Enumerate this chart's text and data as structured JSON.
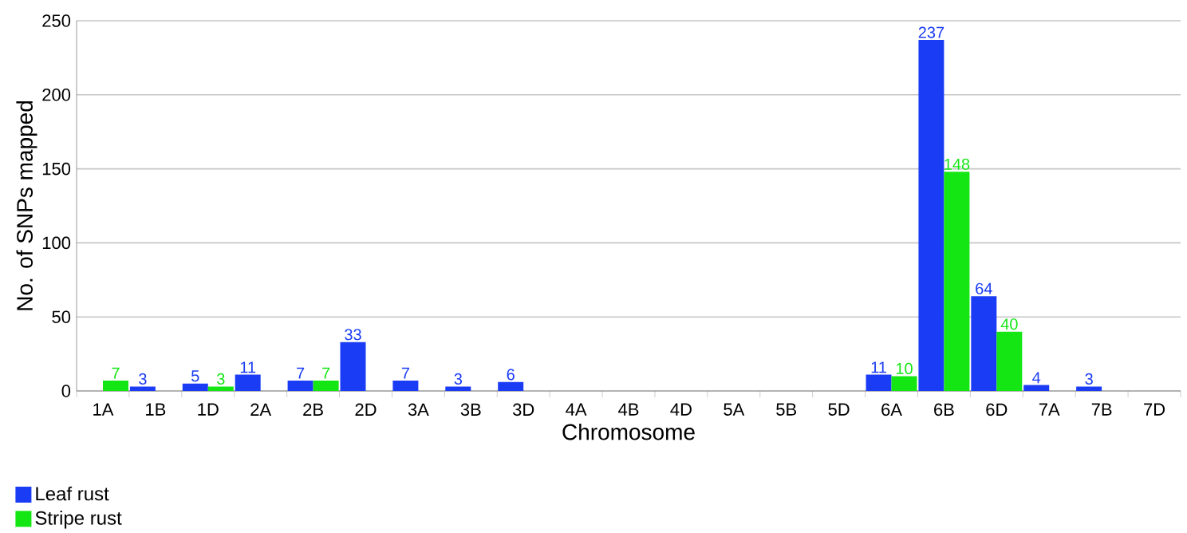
{
  "chart_data": {
    "type": "bar",
    "xlabel": "Chromosome",
    "ylabel": "No. of SNPs mapped",
    "categories": [
      "1A",
      "1B",
      "1D",
      "2A",
      "2B",
      "2D",
      "3A",
      "3B",
      "3D",
      "4A",
      "4B",
      "4D",
      "5A",
      "5B",
      "5D",
      "6A",
      "6B",
      "6D",
      "7A",
      "7B",
      "7D"
    ],
    "series": [
      {
        "name": "Leaf rust",
        "color": "#1b3cf5",
        "values": [
          0,
          3,
          5,
          11,
          7,
          33,
          7,
          3,
          6,
          0,
          0,
          0,
          0,
          0,
          0,
          11,
          237,
          64,
          4,
          3,
          0
        ],
        "value_labels": [
          null,
          "3",
          "5",
          "11",
          "7",
          "33",
          "7",
          "3",
          "6",
          null,
          null,
          null,
          null,
          null,
          null,
          "11",
          "237",
          "64",
          "4",
          "3",
          null
        ]
      },
      {
        "name": "Stripe rust",
        "color": "#14e614",
        "values": [
          7,
          0,
          3,
          0,
          7,
          0,
          0,
          0,
          0,
          0,
          0,
          0,
          0,
          0,
          0,
          10,
          148,
          40,
          0,
          0,
          0
        ],
        "value_labels": [
          "7",
          null,
          "3",
          null,
          "7",
          null,
          null,
          null,
          null,
          null,
          null,
          null,
          null,
          null,
          null,
          "10",
          "148",
          "40",
          null,
          null,
          null
        ]
      }
    ],
    "ylim": [
      0,
      250
    ],
    "yticks": [
      0,
      50,
      100,
      150,
      200,
      250
    ],
    "grid": "y",
    "legend": "bottom left"
  }
}
